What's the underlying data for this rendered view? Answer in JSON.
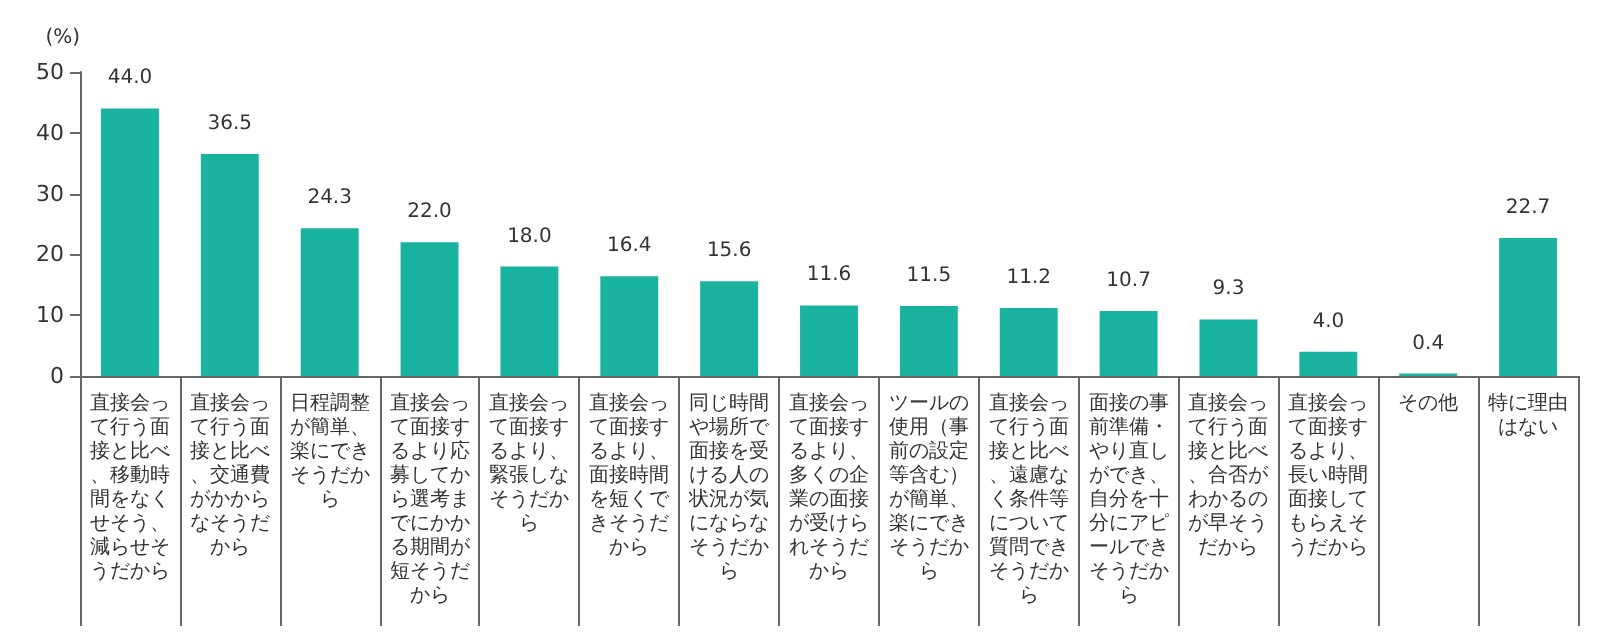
{
  "chart_data": {
    "type": "bar",
    "ylabel": "(%)",
    "categories": [
      "直接会って行う面接と比べ、移動時間をなくせそう、減らせそうだから",
      "直接会って行う面接と比べ、交通費がかからなそうだから",
      "日程調整が簡単、楽にできそうだから",
      "直接会って面接するより応募してから選考までにかかる期間が短そうだから",
      "直接会って面接するより、緊張しなそうだから",
      "直接会って面接するより、面接時間を短くできそうだから",
      "同じ時間や場所で面接を受ける人の状況が気にならなそうだから",
      "直接会って面接するより、多くの企業の面接が受けられそうだから",
      "ツールの使用（事前の設定等含む）が簡単、楽にできそうだから",
      "直接会って行う面接と比べ、遠慮なく条件等について質問できそうだから",
      "面接の事前準備・やり直しができ、自分を十分にアピールできそうだから",
      "直接会って行う面接と比べ、合否がわかるのが早そうだから",
      "直接会って面接するより、長い時間面接してもらえそうだから",
      "その他",
      "特に理由はない"
    ],
    "values": [
      44.0,
      36.5,
      24.3,
      22.0,
      18.0,
      16.4,
      15.6,
      11.6,
      11.5,
      11.2,
      10.7,
      9.3,
      4.0,
      0.4,
      22.7
    ],
    "value_labels": [
      "44.0",
      "36.5",
      "24.3",
      "22.0",
      "18.0",
      "16.4",
      "15.6",
      "11.6",
      "11.5",
      "11.2",
      "10.7",
      "9.3",
      "4.0",
      "0.4",
      "22.7"
    ],
    "color": "#1ab39f",
    "ylim": [
      0,
      50
    ],
    "yticks": [
      0,
      10,
      20,
      30,
      40,
      50
    ],
    "grid": false
  }
}
